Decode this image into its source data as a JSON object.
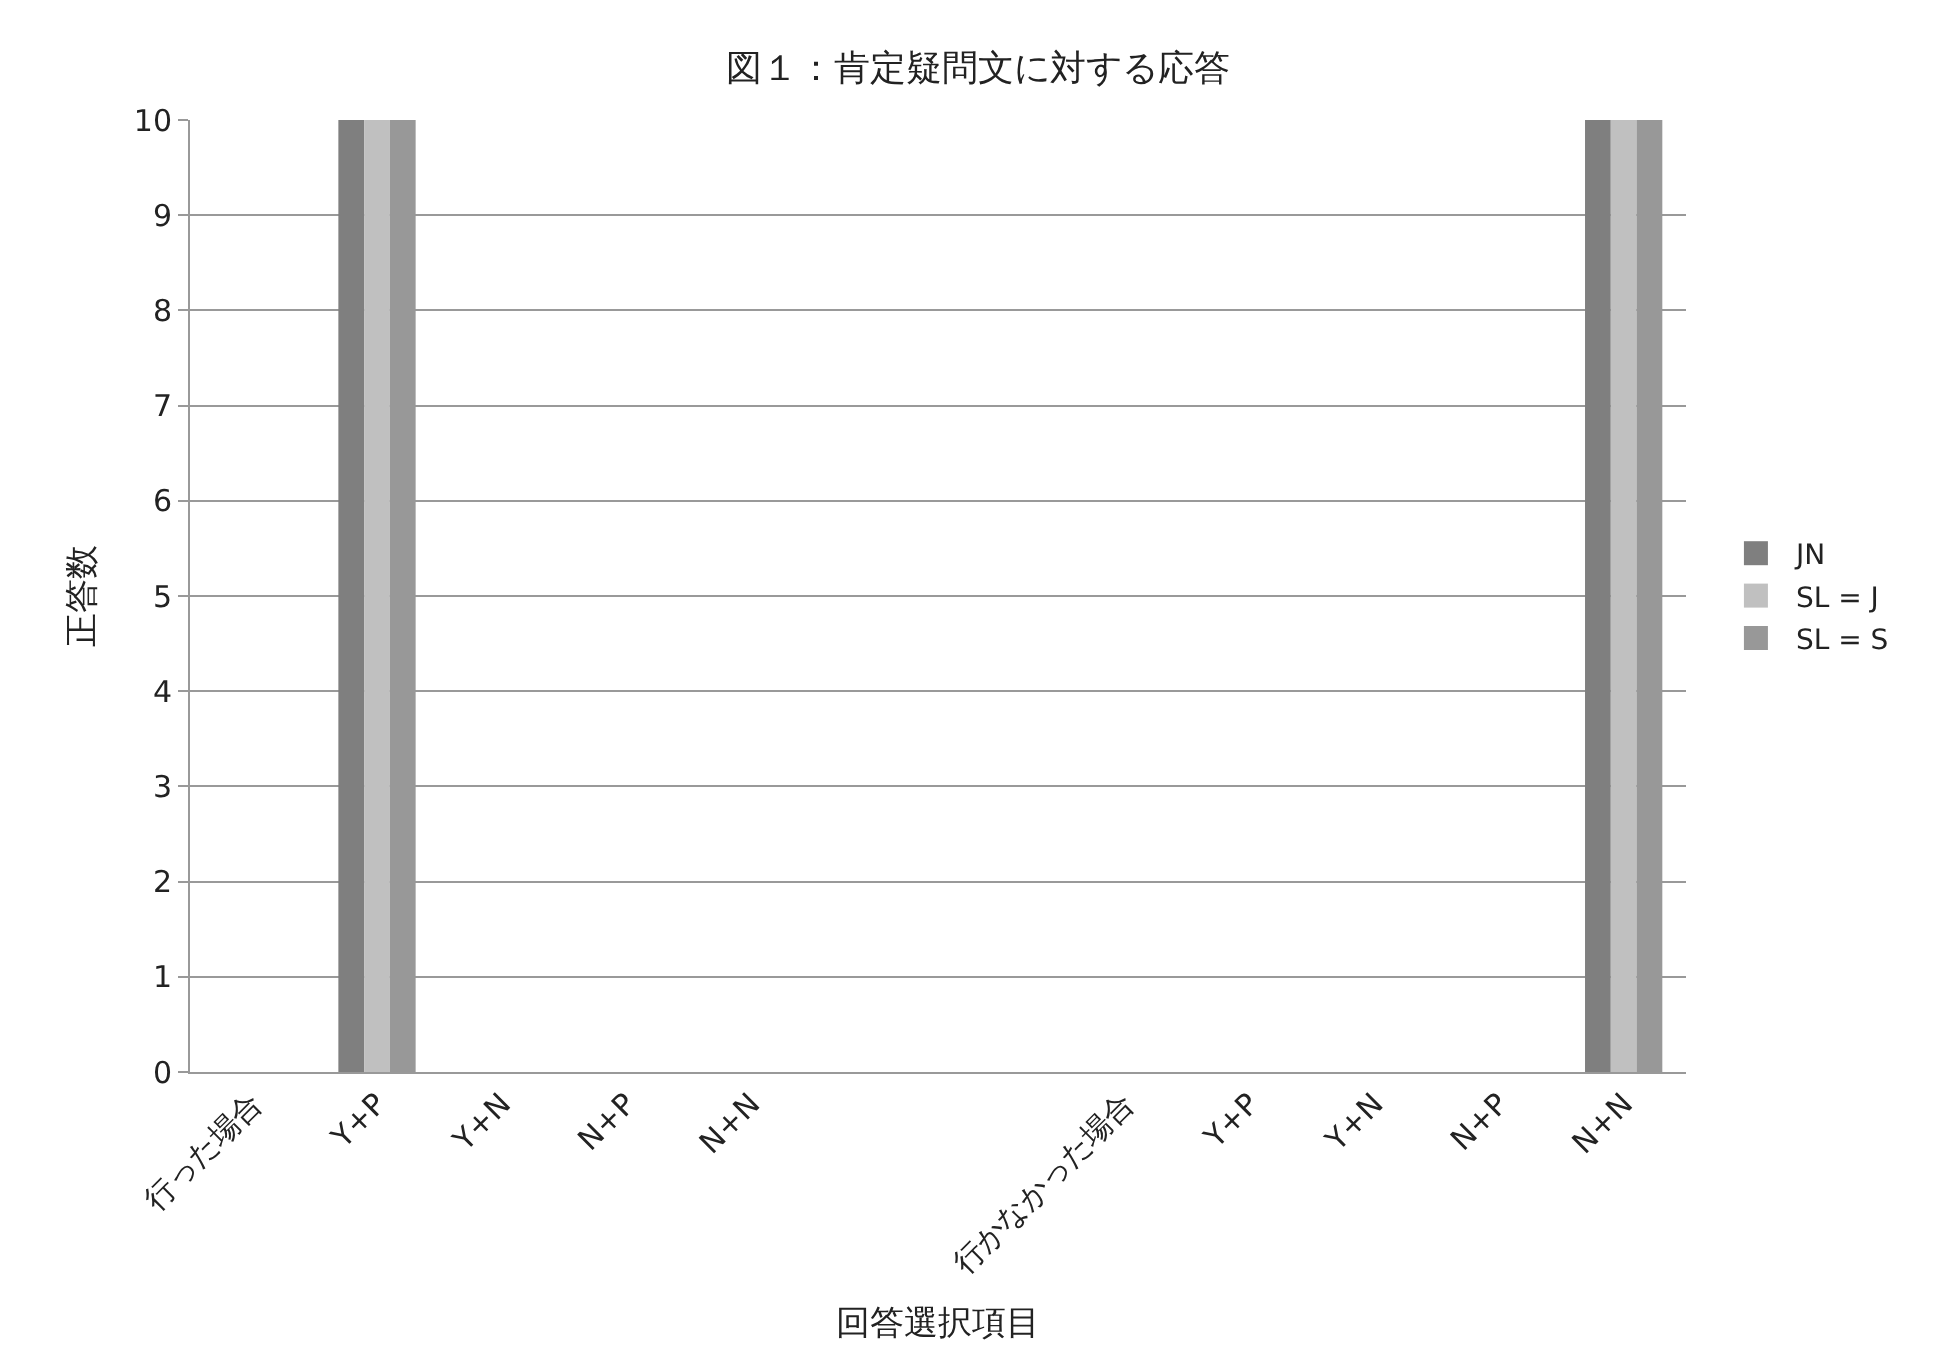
{
  "chart_data": {
    "type": "bar",
    "title": "図１：肯定疑問文に対する応答",
    "xlabel": "回答選択項目",
    "ylabel": "正答数",
    "categories": [
      "行った場合",
      "Y+P",
      "Y+N",
      "N+P",
      "N+N",
      null,
      null,
      "行かなかった場合",
      "Y+P",
      "Y+N",
      "N+P",
      "N+N"
    ],
    "series": [
      {
        "name": "JN",
        "color": "#7f7f7f",
        "values": [
          0,
          10,
          0,
          0,
          0,
          null,
          null,
          0,
          0,
          0,
          0,
          10
        ]
      },
      {
        "name": "SL = J",
        "color": "#c0c0c0",
        "values": [
          0,
          10,
          0,
          0,
          0,
          null,
          null,
          0,
          0,
          0,
          0,
          10
        ]
      },
      {
        "name": "SL = S",
        "color": "#989898",
        "values": [
          0,
          10,
          0,
          0,
          0,
          null,
          null,
          0,
          0,
          0,
          0,
          10
        ]
      }
    ],
    "ylim": [
      0,
      10
    ],
    "yticks": [
      0,
      1,
      2,
      3,
      4,
      5,
      6,
      7,
      8,
      9,
      10
    ],
    "grid": "y",
    "legend": "right"
  }
}
